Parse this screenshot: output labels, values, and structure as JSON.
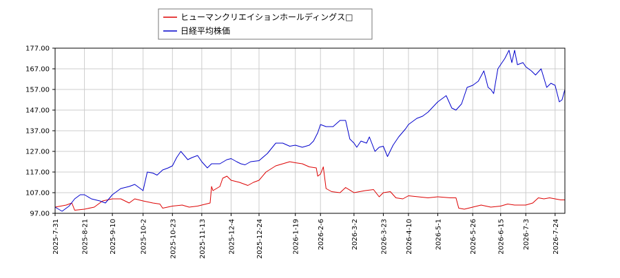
{
  "chart_data": {
    "type": "line",
    "title": "",
    "xlabel": "",
    "ylabel": "",
    "ylim": [
      97,
      177
    ],
    "y_ticks": [
      "97.00",
      "107.00",
      "117.00",
      "127.00",
      "137.00",
      "147.00",
      "157.00",
      "167.00",
      "177.00"
    ],
    "x_tick_labels": [
      "2025-7-31",
      "2025-8-21",
      "2025-9-10",
      "2025-10-2",
      "2025-10-23",
      "2025-11-13",
      "2025-12-4",
      "2025-12-24",
      "2026-1-19",
      "2026-2-6",
      "2026-3-2",
      "2026-3-23",
      "2026-4-10",
      "2026-5-1",
      "2026-5-26",
      "2026-6-15",
      "2026-7-3",
      "2026-7-24"
    ],
    "grid": true,
    "legend_position": "top-center",
    "series": [
      {
        "name": "ヒューマンクリエイションホールディングス□",
        "color": "#dd0000",
        "keypoints": [
          [
            "2025-7-31",
            100
          ],
          [
            "2025-8-8",
            101
          ],
          [
            "2025-8-12",
            102
          ],
          [
            "2025-8-14",
            98.5
          ],
          [
            "2025-8-21",
            99
          ],
          [
            "2025-8-28",
            100
          ],
          [
            "2025-9-3",
            103
          ],
          [
            "2025-9-10",
            104
          ],
          [
            "2025-9-16",
            104
          ],
          [
            "2025-9-22",
            102
          ],
          [
            "2025-9-26",
            104
          ],
          [
            "2025-10-2",
            103
          ],
          [
            "2025-10-9",
            102
          ],
          [
            "2025-10-14",
            101.5
          ],
          [
            "2025-10-16",
            99.5
          ],
          [
            "2025-10-23",
            100.5
          ],
          [
            "2025-10-30",
            101
          ],
          [
            "2025-11-4",
            100
          ],
          [
            "2025-11-10",
            100.5
          ],
          [
            "2025-11-13",
            101
          ],
          [
            "2025-11-19",
            102
          ],
          [
            "2025-11-20",
            110
          ],
          [
            "2025-11-21",
            108
          ],
          [
            "2025-11-26",
            110
          ],
          [
            "2025-11-28",
            114
          ],
          [
            "2025-12-1",
            115
          ],
          [
            "2025-12-4",
            113
          ],
          [
            "2025-12-10",
            112
          ],
          [
            "2025-12-16",
            110.5
          ],
          [
            "2025-12-20",
            112
          ],
          [
            "2025-12-24",
            113
          ],
          [
            "2025-12-29",
            117
          ],
          [
            "2026-1-5",
            120
          ],
          [
            "2026-1-10",
            121
          ],
          [
            "2026-1-15",
            122
          ],
          [
            "2026-1-19",
            121.5
          ],
          [
            "2026-1-24",
            121
          ],
          [
            "2026-1-29",
            119.5
          ],
          [
            "2026-2-3",
            119
          ],
          [
            "2026-2-4",
            115
          ],
          [
            "2026-2-6",
            116
          ],
          [
            "2026-2-8",
            119.5
          ],
          [
            "2026-2-10",
            109
          ],
          [
            "2026-2-14",
            107.5
          ],
          [
            "2026-2-20",
            107
          ],
          [
            "2026-2-24",
            109.5
          ],
          [
            "2026-3-2",
            107
          ],
          [
            "2026-3-10",
            108
          ],
          [
            "2026-3-16",
            108.5
          ],
          [
            "2026-3-20",
            105
          ],
          [
            "2026-3-23",
            107
          ],
          [
            "2026-3-28",
            107.5
          ],
          [
            "2026-4-1",
            104.5
          ],
          [
            "2026-4-6",
            104
          ],
          [
            "2026-4-10",
            105.5
          ],
          [
            "2026-4-17",
            105
          ],
          [
            "2026-4-24",
            104.5
          ],
          [
            "2026-5-1",
            105
          ],
          [
            "2026-5-10",
            104.5
          ],
          [
            "2026-5-14",
            104.5
          ],
          [
            "2026-5-16",
            99.5
          ],
          [
            "2026-5-20",
            99
          ],
          [
            "2026-5-26",
            100
          ],
          [
            "2026-6-1",
            101
          ],
          [
            "2026-6-8",
            100
          ],
          [
            "2026-6-15",
            100.5
          ],
          [
            "2026-6-20",
            101.5
          ],
          [
            "2026-6-25",
            101
          ],
          [
            "2026-7-3",
            101
          ],
          [
            "2026-7-8",
            102
          ],
          [
            "2026-7-12",
            104.5
          ],
          [
            "2026-7-16",
            104
          ],
          [
            "2026-7-20",
            104.5
          ],
          [
            "2026-7-24",
            104
          ],
          [
            "2026-7-28",
            103.5
          ],
          [
            "2026-7-31",
            103.5
          ]
        ]
      },
      {
        "name": "日経平均株価",
        "color": "#0000cc",
        "keypoints": [
          [
            "2025-7-31",
            100
          ],
          [
            "2025-8-5",
            98
          ],
          [
            "2025-8-10",
            100.5
          ],
          [
            "2025-8-14",
            104
          ],
          [
            "2025-8-18",
            106
          ],
          [
            "2025-8-21",
            106
          ],
          [
            "2025-8-26",
            104
          ],
          [
            "2025-9-1",
            103
          ],
          [
            "2025-9-5",
            102
          ],
          [
            "2025-9-10",
            106
          ],
          [
            "2025-9-16",
            109
          ],
          [
            "2025-9-22",
            110
          ],
          [
            "2025-9-26",
            111
          ],
          [
            "2025-10-2",
            108
          ],
          [
            "2025-10-5",
            117
          ],
          [
            "2025-10-9",
            116.5
          ],
          [
            "2025-10-12",
            115.5
          ],
          [
            "2025-10-16",
            118
          ],
          [
            "2025-10-20",
            119
          ],
          [
            "2025-10-23",
            120
          ],
          [
            "2025-10-26",
            124
          ],
          [
            "2025-10-29",
            127
          ],
          [
            "2025-11-3",
            123
          ],
          [
            "2025-11-6",
            124
          ],
          [
            "2025-11-10",
            125
          ],
          [
            "2025-11-13",
            122
          ],
          [
            "2025-11-17",
            119
          ],
          [
            "2025-11-20",
            121
          ],
          [
            "2025-11-26",
            121
          ],
          [
            "2025-12-1",
            123
          ],
          [
            "2025-12-4",
            123.5
          ],
          [
            "2025-12-8",
            122
          ],
          [
            "2025-12-11",
            121
          ],
          [
            "2025-12-14",
            120.5
          ],
          [
            "2025-12-18",
            122
          ],
          [
            "2025-12-24",
            122.5
          ],
          [
            "2025-12-30",
            126
          ],
          [
            "2026-1-5",
            131
          ],
          [
            "2026-1-10",
            131
          ],
          [
            "2026-1-15",
            129.5
          ],
          [
            "2026-1-19",
            130
          ],
          [
            "2026-1-24",
            129
          ],
          [
            "2026-1-29",
            130
          ],
          [
            "2026-2-1",
            132
          ],
          [
            "2026-2-4",
            136
          ],
          [
            "2026-2-6",
            140
          ],
          [
            "2026-2-10",
            139
          ],
          [
            "2026-2-15",
            139
          ],
          [
            "2026-2-20",
            142
          ],
          [
            "2026-2-24",
            142
          ],
          [
            "2026-2-27",
            133
          ],
          [
            "2026-3-2",
            131
          ],
          [
            "2026-3-4",
            129
          ],
          [
            "2026-3-7",
            132
          ],
          [
            "2026-3-11",
            131
          ],
          [
            "2026-3-13",
            134
          ],
          [
            "2026-3-17",
            127
          ],
          [
            "2026-3-20",
            129
          ],
          [
            "2026-3-23",
            129.5
          ],
          [
            "2026-3-26",
            124.5
          ],
          [
            "2026-3-30",
            130
          ],
          [
            "2026-4-3",
            134
          ],
          [
            "2026-4-8",
            138
          ],
          [
            "2026-4-10",
            140
          ],
          [
            "2026-4-16",
            143
          ],
          [
            "2026-4-20",
            144
          ],
          [
            "2026-4-24",
            146
          ],
          [
            "2026-5-1",
            151
          ],
          [
            "2026-5-7",
            154
          ],
          [
            "2026-5-11",
            148
          ],
          [
            "2026-5-14",
            147
          ],
          [
            "2026-5-18",
            150
          ],
          [
            "2026-5-22",
            158
          ],
          [
            "2026-5-26",
            159
          ],
          [
            "2026-5-30",
            161
          ],
          [
            "2026-6-3",
            166
          ],
          [
            "2026-6-6",
            158
          ],
          [
            "2026-6-8",
            157
          ],
          [
            "2026-6-10",
            155
          ],
          [
            "2026-6-13",
            167
          ],
          [
            "2026-6-15",
            169
          ],
          [
            "2026-6-18",
            172
          ],
          [
            "2026-6-21",
            176
          ],
          [
            "2026-6-23",
            170
          ],
          [
            "2026-6-25",
            176
          ],
          [
            "2026-6-27",
            169
          ],
          [
            "2026-7-1",
            170
          ],
          [
            "2026-7-3",
            168
          ],
          [
            "2026-7-7",
            166
          ],
          [
            "2026-7-10",
            164
          ],
          [
            "2026-7-14",
            167
          ],
          [
            "2026-7-18",
            158
          ],
          [
            "2026-7-21",
            160
          ],
          [
            "2026-7-24",
            159
          ],
          [
            "2026-7-27",
            151
          ],
          [
            "2026-7-29",
            152
          ],
          [
            "2026-7-31",
            157
          ]
        ]
      }
    ]
  }
}
